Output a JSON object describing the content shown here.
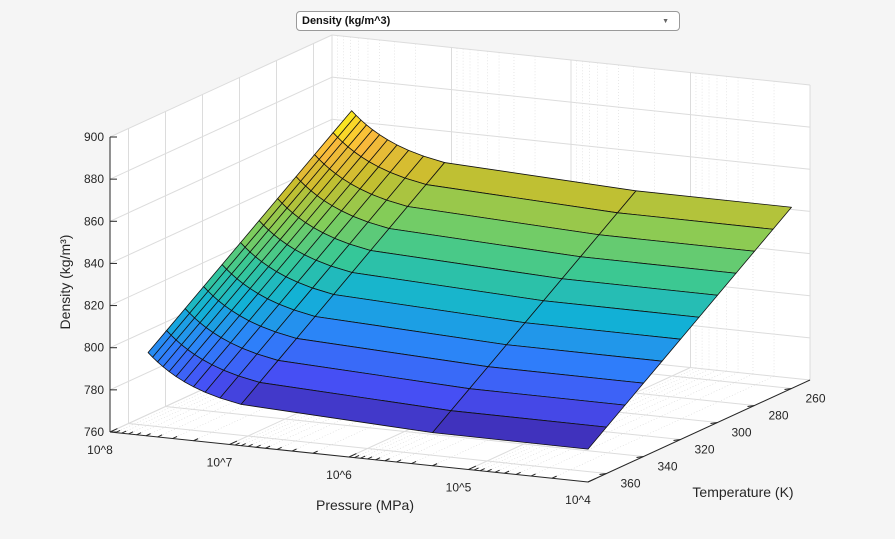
{
  "dropdown": {
    "selected": "Density (kg/m^3)",
    "icon": "chevron-down-icon"
  },
  "chart_data": {
    "type": "surface",
    "title": "",
    "xlabel": "Pressure (MPa)",
    "ylabel": "Temperature (K)",
    "zlabel": "Density  (kg/m³)",
    "xscale": "log",
    "xlim": [
      10000,
      100000000
    ],
    "ylim": [
      250,
      370
    ],
    "zlim": [
      760,
      900
    ],
    "x_ticks": [
      "10^8",
      "10^7",
      "10^6",
      "10^5",
      "10^4"
    ],
    "x_tick_values": [
      100000000,
      10000000,
      1000000,
      100000,
      10000
    ],
    "y_ticks": [
      "260",
      "280",
      "300",
      "320",
      "340",
      "360"
    ],
    "z_ticks": [
      "760",
      "780",
      "800",
      "820",
      "840",
      "860",
      "880",
      "900"
    ],
    "grid": true,
    "colormap": "parula",
    "pressure": [
      10000,
      200000,
      8000000,
      12000000,
      16000000,
      20000000,
      24000000,
      28000000,
      32000000,
      36000000,
      40000000,
      44000000,
      48000000
    ],
    "temperature": [
      260,
      270,
      280,
      290,
      300,
      310,
      320,
      330,
      340,
      350,
      360,
      370
    ],
    "density": [
      [
        846.0,
        846.1,
        850.0,
        852.0,
        854.0,
        856.0,
        858.0,
        860.0,
        862.0,
        864.0,
        866.0,
        868.0,
        870.0
      ],
      [
        839.6,
        839.7,
        843.6,
        845.6,
        847.6,
        849.6,
        851.6,
        853.6,
        855.6,
        857.6,
        859.6,
        861.6,
        863.6
      ],
      [
        833.2,
        833.3,
        837.2,
        839.2,
        841.2,
        843.2,
        845.2,
        847.2,
        849.2,
        851.2,
        853.2,
        855.2,
        857.2
      ],
      [
        826.8,
        826.9,
        830.8,
        832.8,
        834.8,
        836.8,
        838.8,
        840.8,
        842.8,
        844.8,
        846.8,
        848.8,
        850.8
      ],
      [
        820.4,
        820.5,
        824.4,
        826.4,
        828.4,
        830.4,
        832.4,
        834.4,
        836.4,
        838.4,
        840.4,
        842.4,
        844.4
      ],
      [
        814.0,
        814.1,
        818.0,
        820.0,
        822.0,
        824.0,
        826.0,
        828.0,
        830.0,
        832.0,
        834.0,
        836.0,
        838.0
      ],
      [
        807.6,
        807.7,
        811.6,
        813.6,
        815.6,
        817.6,
        819.6,
        821.6,
        823.6,
        825.6,
        827.6,
        829.6,
        831.6
      ],
      [
        801.2,
        801.3,
        805.2,
        807.2,
        809.2,
        811.2,
        813.2,
        815.2,
        817.2,
        819.2,
        821.2,
        823.2,
        825.2
      ],
      [
        794.8,
        794.9,
        798.8,
        800.8,
        802.8,
        804.8,
        806.8,
        808.8,
        810.8,
        812.8,
        814.8,
        816.8,
        818.8
      ],
      [
        788.4,
        788.5,
        792.4,
        794.4,
        796.4,
        798.4,
        800.4,
        802.4,
        804.4,
        806.4,
        808.4,
        810.4,
        812.4
      ],
      [
        782.0,
        782.1,
        786.0,
        788.0,
        790.0,
        792.0,
        794.0,
        796.0,
        798.0,
        800.0,
        802.0,
        804.0,
        806.0
      ],
      [
        775.6,
        775.7,
        779.6,
        781.6,
        783.6,
        785.6,
        787.6,
        789.6,
        791.6,
        793.6,
        795.6,
        797.6,
        799.6
      ]
    ]
  }
}
